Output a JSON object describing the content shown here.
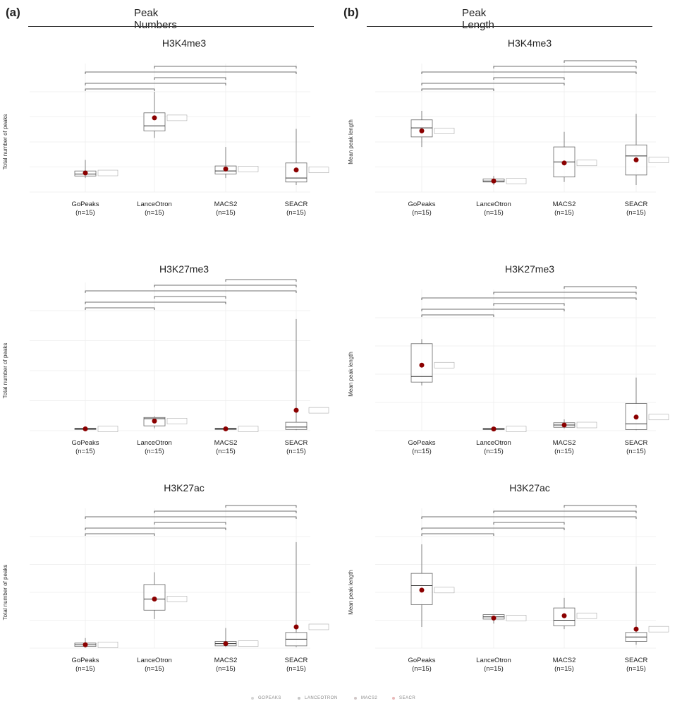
{
  "panels": {
    "a": {
      "letter": "(a)",
      "title": "Peak Numbers"
    },
    "b": {
      "letter": "(b)",
      "title": "Peak Length"
    }
  },
  "legend": [
    {
      "label": "GOPEAKS",
      "color": "#d5d5d5"
    },
    {
      "label": "LANCEOTRON",
      "color": "#c6c6c6"
    },
    {
      "label": "MACS2",
      "color": "#d0c6c6"
    },
    {
      "label": "SEACR",
      "color": "#e8b8b8"
    }
  ],
  "colors": {
    "mean_point": "#8b0000",
    "box": "#666666",
    "bracket": "#444444",
    "grid": "#ececec"
  },
  "chart_data": [
    {
      "type": "box",
      "panel": "a",
      "title": "H3K4me3",
      "ylabel": "Total number of peaks",
      "categories": [
        "GoPeaks\n(n=15)",
        "LanceOtron\n(n=15)",
        "MACS2\n(n=15)",
        "SEACR\n(n=15)"
      ],
      "ylim": [
        0,
        1
      ],
      "grid": true,
      "series": [
        {
          "q1": 0.16,
          "median": 0.18,
          "q3": 0.21,
          "min": 0.14,
          "max": 0.32,
          "mean": 0.19
        },
        {
          "q1": 0.61,
          "median": 0.66,
          "q3": 0.79,
          "min": 0.54,
          "max": 1.0,
          "mean": 0.74
        },
        {
          "q1": 0.18,
          "median": 0.21,
          "q3": 0.26,
          "min": 0.14,
          "max": 0.45,
          "mean": 0.23
        },
        {
          "q1": 0.1,
          "median": 0.14,
          "q3": 0.29,
          "min": 0.07,
          "max": 0.63,
          "mean": 0.22
        }
      ],
      "brackets": 5
    },
    {
      "type": "box",
      "panel": "b",
      "title": "H3K4me3",
      "ylabel": "Mean peak length",
      "categories": [
        "GoPeaks\n(n=15)",
        "LanceOtron\n(n=15)",
        "MACS2\n(n=15)",
        "SEACR\n(n=15)"
      ],
      "ylim": [
        0,
        1
      ],
      "grid": true,
      "series": [
        {
          "q1": 0.55,
          "median": 0.64,
          "q3": 0.72,
          "min": 0.45,
          "max": 0.81,
          "mean": 0.61
        },
        {
          "q1": 0.1,
          "median": 0.11,
          "q3": 0.13,
          "min": 0.07,
          "max": 0.16,
          "mean": 0.11
        },
        {
          "q1": 0.15,
          "median": 0.3,
          "q3": 0.45,
          "min": 0.1,
          "max": 0.6,
          "mean": 0.29
        },
        {
          "q1": 0.17,
          "median": 0.36,
          "q3": 0.47,
          "min": 0.07,
          "max": 0.78,
          "mean": 0.32
        }
      ],
      "brackets": 6
    },
    {
      "type": "box",
      "panel": "a",
      "title": "H3K27me3",
      "ylabel": "Total number of peaks",
      "categories": [
        "GoPeaks\n(n=15)",
        "LanceOtron\n(n=15)",
        "MACS2\n(n=15)",
        "SEACR\n(n=15)"
      ],
      "ylim": [
        0,
        1
      ],
      "grid": true,
      "series": [
        {
          "q1": 0.01,
          "median": 0.015,
          "q3": 0.02,
          "min": 0.005,
          "max": 0.03,
          "mean": 0.015
        },
        {
          "q1": 0.04,
          "median": 0.1,
          "q3": 0.11,
          "min": 0.02,
          "max": 0.12,
          "mean": 0.08
        },
        {
          "q1": 0.01,
          "median": 0.015,
          "q3": 0.02,
          "min": 0.005,
          "max": 0.03,
          "mean": 0.015
        },
        {
          "q1": 0.01,
          "median": 0.03,
          "q3": 0.07,
          "min": 0.005,
          "max": 0.93,
          "mean": 0.17
        }
      ],
      "brackets": 6
    },
    {
      "type": "box",
      "panel": "b",
      "title": "H3K27me3",
      "ylabel": "Mean peak length",
      "categories": [
        "GoPeaks\n(n=15)",
        "LanceOtron\n(n=15)",
        "MACS2\n(n=15)",
        "SEACR\n(n=15)"
      ],
      "ylim": [
        0,
        1
      ],
      "grid": true,
      "series": [
        {
          "q1": 0.43,
          "median": 0.48,
          "q3": 0.77,
          "min": 0.4,
          "max": 0.81,
          "mean": 0.58
        },
        {
          "q1": 0.01,
          "median": 0.015,
          "q3": 0.02,
          "min": 0.005,
          "max": 0.03,
          "mean": 0.015
        },
        {
          "q1": 0.03,
          "median": 0.05,
          "q3": 0.07,
          "min": 0.02,
          "max": 0.1,
          "mean": 0.05
        },
        {
          "q1": 0.01,
          "median": 0.06,
          "q3": 0.24,
          "min": 0.005,
          "max": 0.47,
          "mean": 0.12
        }
      ],
      "brackets": 6
    },
    {
      "type": "box",
      "panel": "a",
      "title": "H3K27ac",
      "ylabel": "Total number of peaks",
      "categories": [
        "GoPeaks\n(n=15)",
        "LanceOtron\n(n=15)",
        "MACS2\n(n=15)",
        "SEACR\n(n=15)"
      ],
      "ylim": [
        0,
        1
      ],
      "grid": true,
      "series": [
        {
          "q1": 0.015,
          "median": 0.03,
          "q3": 0.045,
          "min": 0.005,
          "max": 0.09,
          "mean": 0.03
        },
        {
          "q1": 0.34,
          "median": 0.44,
          "q3": 0.57,
          "min": 0.26,
          "max": 0.68,
          "mean": 0.44
        },
        {
          "q1": 0.02,
          "median": 0.04,
          "q3": 0.06,
          "min": 0.01,
          "max": 0.18,
          "mean": 0.04
        },
        {
          "q1": 0.02,
          "median": 0.08,
          "q3": 0.14,
          "min": 0.01,
          "max": 0.95,
          "mean": 0.19
        }
      ],
      "brackets": 6
    },
    {
      "type": "box",
      "panel": "b",
      "title": "H3K27ac",
      "ylabel": "Mean peak length",
      "categories": [
        "GoPeaks\n(n=15)",
        "LanceOtron\n(n=15)",
        "MACS2\n(n=15)",
        "SEACR\n(n=15)"
      ],
      "ylim": [
        0,
        1
      ],
      "grid": true,
      "series": [
        {
          "q1": 0.39,
          "median": 0.56,
          "q3": 0.67,
          "min": 0.19,
          "max": 0.93,
          "mean": 0.52
        },
        {
          "q1": 0.26,
          "median": 0.28,
          "q3": 0.3,
          "min": 0.22,
          "max": 0.3,
          "mean": 0.27
        },
        {
          "q1": 0.2,
          "median": 0.25,
          "q3": 0.36,
          "min": 0.17,
          "max": 0.45,
          "mean": 0.29
        },
        {
          "q1": 0.06,
          "median": 0.1,
          "q3": 0.14,
          "min": 0.03,
          "max": 0.73,
          "mean": 0.17
        }
      ],
      "brackets": 6
    }
  ]
}
